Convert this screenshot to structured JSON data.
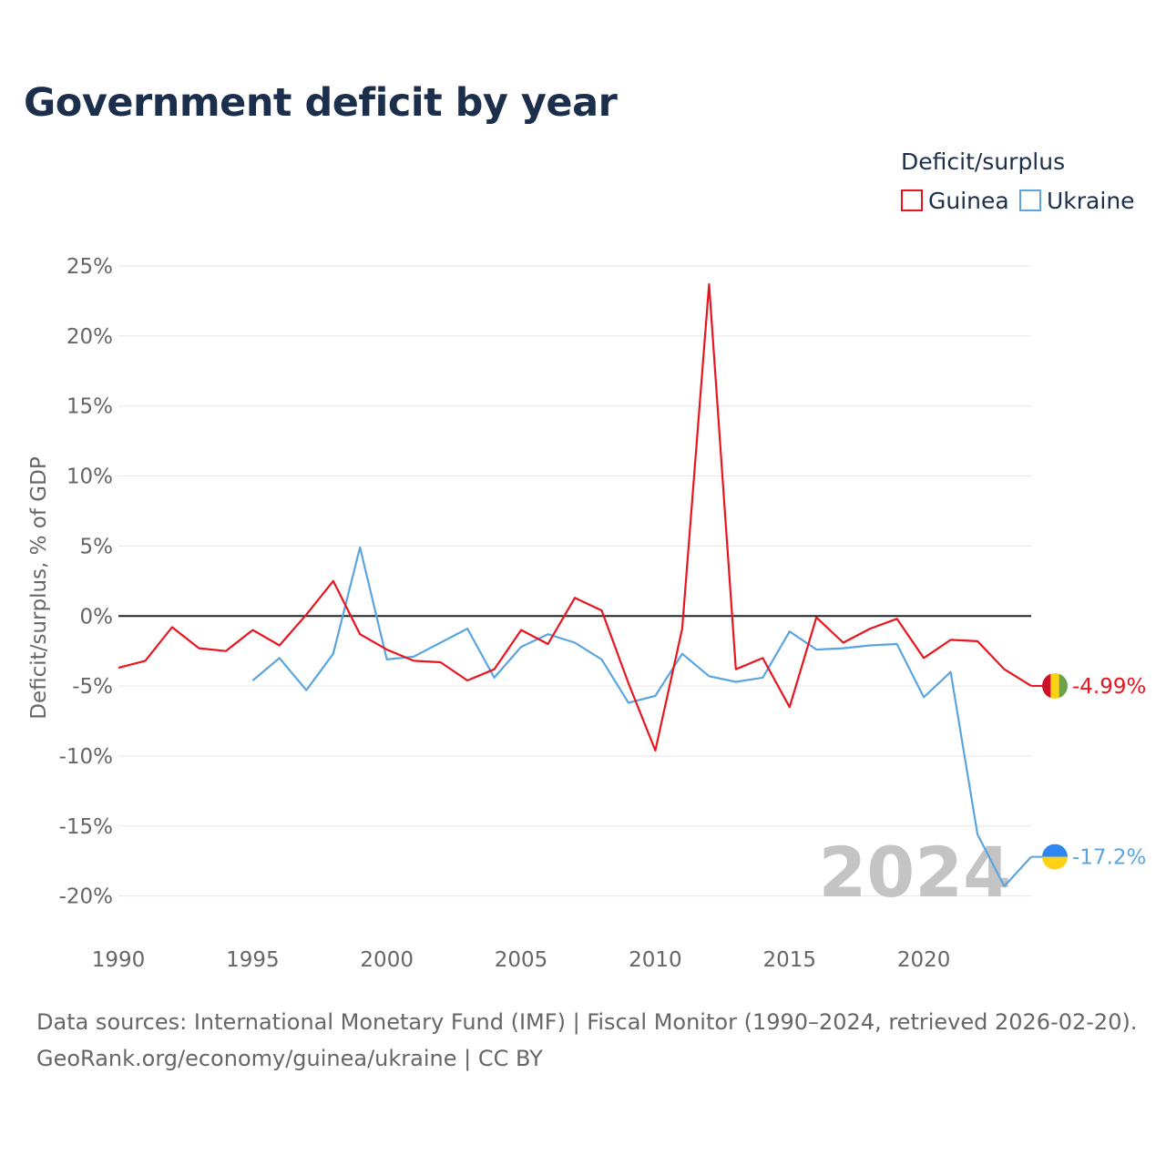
{
  "chart_data": {
    "type": "line",
    "title": "Government deficit by year",
    "xlabel": "",
    "ylabel": "Deficit/surplus, % of GDP",
    "legend_title": "Deficit/surplus",
    "xlim": [
      1990,
      2024
    ],
    "ylim": [
      -22,
      26
    ],
    "x_ticks": [
      1990,
      1995,
      2000,
      2005,
      2010,
      2015,
      2020
    ],
    "y_ticks": [
      25,
      20,
      15,
      10,
      5,
      0,
      -5,
      -10,
      -15,
      -20
    ],
    "y_tick_labels": [
      "25%",
      "20%",
      "15%",
      "10%",
      "5%",
      "0%",
      "-5%",
      "-10%",
      "-15%",
      "-20%"
    ],
    "watermark_year": "2024",
    "series": [
      {
        "name": "Guinea",
        "color": "#e8141e",
        "end_label": "-4.99%",
        "flag": "guinea-flag-icon",
        "x": [
          1990,
          1991,
          1992,
          1993,
          1994,
          1995,
          1996,
          1997,
          1998,
          1999,
          2000,
          2001,
          2002,
          2003,
          2004,
          2005,
          2006,
          2007,
          2008,
          2009,
          2010,
          2011,
          2012,
          2013,
          2014,
          2015,
          2016,
          2017,
          2018,
          2019,
          2020,
          2021,
          2022,
          2023,
          2024
        ],
        "values": [
          -3.7,
          -3.2,
          -0.8,
          -2.3,
          -2.5,
          -1.0,
          -2.1,
          0.1,
          2.5,
          -1.3,
          -2.4,
          -3.2,
          -3.3,
          -4.6,
          -3.8,
          -1.0,
          -2.0,
          1.3,
          0.4,
          -4.8,
          -9.6,
          -0.9,
          23.7,
          -3.8,
          -3.0,
          -6.5,
          -0.1,
          -1.9,
          -0.9,
          -0.2,
          -3.0,
          -1.7,
          -1.8,
          -3.8,
          -4.99
        ]
      },
      {
        "name": "Ukraine",
        "color": "#5aa5df",
        "end_label": "-17.2%",
        "flag": "ukraine-flag-icon",
        "x": [
          1995,
          1996,
          1997,
          1998,
          1999,
          2000,
          2001,
          2002,
          2003,
          2004,
          2005,
          2006,
          2007,
          2008,
          2009,
          2010,
          2011,
          2012,
          2013,
          2014,
          2015,
          2016,
          2017,
          2018,
          2019,
          2020,
          2021,
          2022,
          2023,
          2024
        ],
        "values": [
          -4.6,
          -3.0,
          -5.3,
          -2.7,
          4.9,
          -3.1,
          -2.9,
          -1.9,
          -0.9,
          -4.4,
          -2.2,
          -1.3,
          -1.9,
          -3.1,
          -6.2,
          -5.7,
          -2.7,
          -4.3,
          -4.7,
          -4.4,
          -1.1,
          -2.4,
          -2.3,
          -2.1,
          -2.0,
          -5.8,
          -4.0,
          -15.6,
          -19.3,
          -17.2
        ]
      }
    ]
  },
  "footer": {
    "sources": "Data sources: International Monetary Fund (IMF) | Fiscal Monitor (1990–2024, retrieved 2026-02-20).",
    "credit": "GeoRank.org/economy/guinea/ukraine | CC BY"
  }
}
